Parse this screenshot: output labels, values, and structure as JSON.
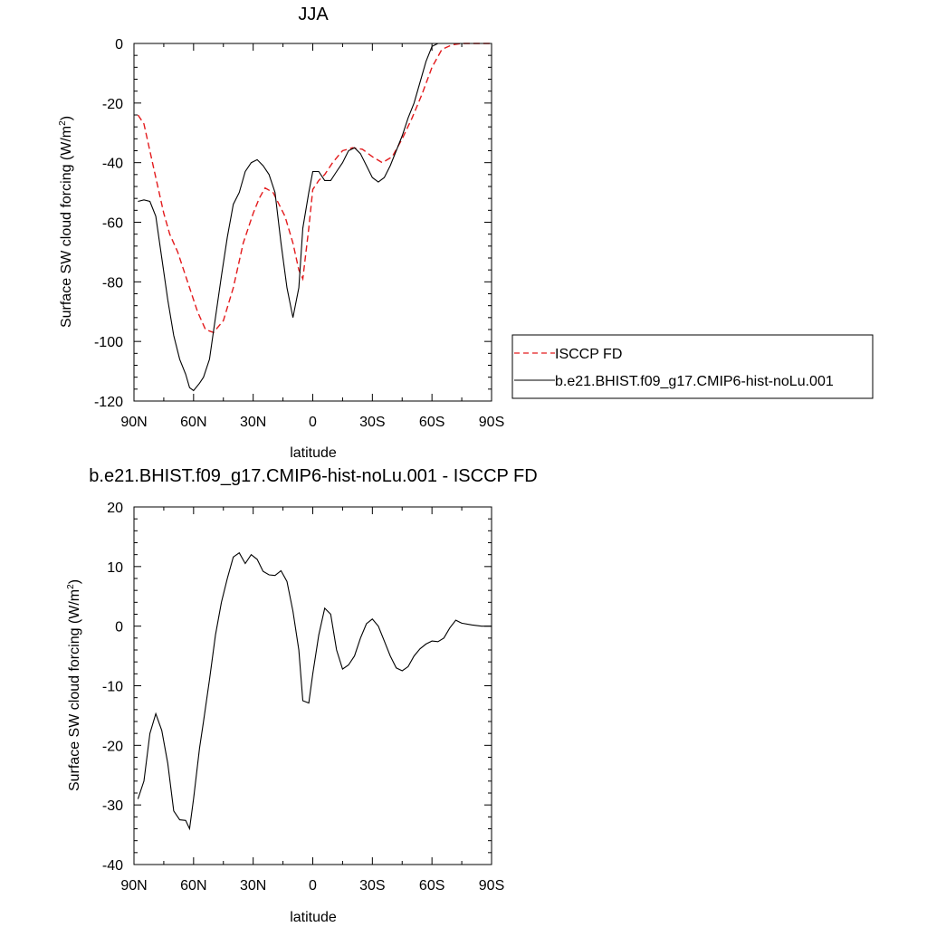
{
  "chart_data": [
    {
      "type": "line",
      "title": "JJA",
      "xlabel": "latitude",
      "ylabel": "Surface SW cloud forcing (W/m",
      "ylabel_sup": "2",
      "ylabel_suffix": ")",
      "xlim": [
        90,
        -90
      ],
      "ylim": [
        -120,
        0
      ],
      "xticks": [
        90,
        60,
        30,
        0,
        -30,
        -60,
        -90
      ],
      "xtick_labels": [
        "90N",
        "60N",
        "30N",
        "0",
        "30S",
        "60S",
        "90S"
      ],
      "yticks": [
        0,
        -20,
        -40,
        -60,
        -80,
        -100,
        -120
      ],
      "ytick_labels": [
        "0",
        "-20",
        "-40",
        "-60",
        "-80",
        "-100",
        "-120"
      ],
      "legend_position": "right",
      "series": [
        {
          "name": "ISCCP FD",
          "color": "#e31a1c",
          "dash": "dashed",
          "x": [
            88,
            85,
            80,
            75,
            72,
            68,
            62,
            58,
            54,
            50,
            45,
            40,
            35,
            30,
            27,
            24,
            20,
            17,
            14,
            10,
            7,
            5,
            2,
            0,
            -3,
            -6,
            -10,
            -15,
            -20,
            -25,
            -30,
            -35,
            -40,
            -45,
            -50,
            -55,
            -60,
            -65,
            -70,
            -75,
            -80,
            -85,
            -90
          ],
          "y": [
            -24,
            -27,
            -42,
            -57,
            -64,
            -70,
            -82,
            -90,
            -96,
            -97,
            -93,
            -82,
            -67,
            -57,
            -52,
            -48.5,
            -50,
            -54,
            -58,
            -67,
            -76,
            -79,
            -62,
            -49,
            -46,
            -44,
            -40,
            -36,
            -35,
            -35.5,
            -38,
            -40,
            -38,
            -32,
            -25,
            -17,
            -8,
            -2,
            -0.5,
            0,
            0,
            0,
            0
          ]
        },
        {
          "name": "b.e21.BHIST.f09_g17.CMIP6-hist-noLu.001",
          "color": "#000000",
          "dash": "solid",
          "x": [
            88,
            85,
            82,
            79,
            76,
            73,
            70,
            67,
            64,
            62,
            60,
            57,
            55,
            52,
            49,
            46,
            43,
            40,
            37,
            34,
            31,
            28,
            25,
            22,
            19,
            16,
            13,
            10,
            7,
            5,
            2,
            0,
            -3,
            -6,
            -9,
            -12,
            -15,
            -18,
            -21,
            -24,
            -27,
            -30,
            -33,
            -36,
            -39,
            -42,
            -45,
            -48,
            -51,
            -54,
            -57,
            -60,
            -63,
            -66,
            -69,
            -72,
            -75,
            -80,
            -85,
            -90
          ],
          "y": [
            -53,
            -52.5,
            -53,
            -58,
            -72,
            -86,
            -98,
            -106,
            -111,
            -115.5,
            -116.5,
            -114,
            -112,
            -106,
            -92,
            -78,
            -65,
            -54,
            -50,
            -43,
            -40,
            -39,
            -41,
            -44,
            -50,
            -67,
            -82,
            -92,
            -82,
            -62,
            -50,
            -43,
            -43,
            -46,
            -46,
            -43,
            -40,
            -36,
            -35,
            -37,
            -41,
            -45,
            -46.5,
            -45,
            -41,
            -36,
            -31,
            -25,
            -20,
            -13,
            -6,
            -1,
            0,
            0,
            0,
            0,
            0,
            0,
            0,
            0
          ]
        }
      ]
    },
    {
      "type": "line",
      "title": "b.e21.BHIST.f09_g17.CMIP6-hist-noLu.001 - ISCCP FD",
      "xlabel": "latitude",
      "ylabel": "Surface SW cloud forcing (W/m",
      "ylabel_sup": "2",
      "ylabel_suffix": ")",
      "xlim": [
        90,
        -90
      ],
      "ylim": [
        -40,
        20
      ],
      "xticks": [
        90,
        60,
        30,
        0,
        -30,
        -60,
        -90
      ],
      "xtick_labels": [
        "90N",
        "60N",
        "30N",
        "0",
        "30S",
        "60S",
        "90S"
      ],
      "yticks": [
        20,
        10,
        0,
        -10,
        -20,
        -30,
        -40
      ],
      "ytick_labels": [
        "20",
        "10",
        "0",
        "-10",
        "-20",
        "-30",
        "-40"
      ],
      "series": [
        {
          "color": "#000000",
          "dash": "solid",
          "x": [
            88,
            85,
            82,
            79,
            76,
            73,
            70,
            67,
            64,
            62,
            60,
            57,
            55,
            52,
            49,
            46,
            43,
            40,
            37,
            34,
            31,
            28,
            25,
            22,
            19,
            16,
            13,
            10,
            7,
            5,
            2,
            0,
            -3,
            -6,
            -9,
            -12,
            -15,
            -18,
            -21,
            -24,
            -27,
            -30,
            -33,
            -36,
            -39,
            -42,
            -45,
            -48,
            -51,
            -54,
            -57,
            -60,
            -63,
            -66,
            -69,
            -72,
            -75,
            -80,
            -85,
            -90
          ],
          "y": [
            -29,
            -26,
            -18,
            -14.7,
            -17.5,
            -23,
            -31,
            -32.5,
            -32.6,
            -34,
            -29,
            -20.5,
            -16,
            -9,
            -1.5,
            4,
            8,
            11.6,
            12.3,
            10.5,
            12,
            11.2,
            9.2,
            8.6,
            8.5,
            9.3,
            7.5,
            2.5,
            -4,
            -12.5,
            -12.9,
            -8,
            -1.5,
            3,
            2,
            -4,
            -7.2,
            -6.5,
            -5,
            -2,
            0.4,
            1.2,
            0,
            -2.5,
            -5,
            -7,
            -7.5,
            -6.8,
            -5,
            -3.8,
            -3,
            -2.5,
            -2.6,
            -2,
            -0.3,
            1,
            0.5,
            0.2,
            0,
            0
          ]
        }
      ]
    }
  ]
}
